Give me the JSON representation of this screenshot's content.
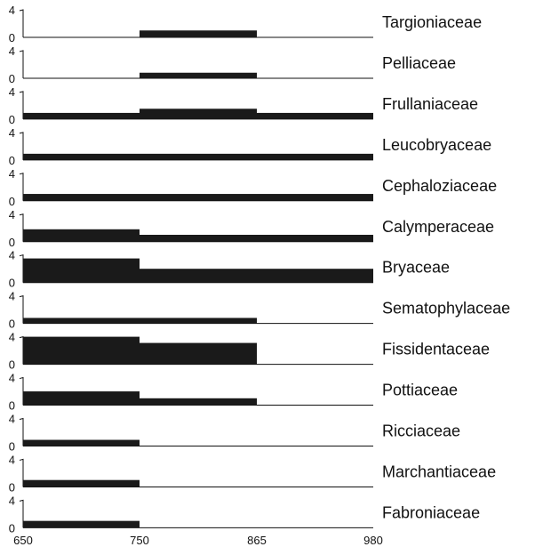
{
  "chart_data": {
    "type": "bar",
    "x_ticks": [
      650,
      750,
      865,
      980
    ],
    "ylim": [
      0,
      4
    ],
    "y_ticks": [
      "0",
      "4"
    ],
    "title": "",
    "xlabel": "",
    "ylabel": "",
    "grid": false,
    "bar_color": "#1a1a1a",
    "series": [
      {
        "name": "Targioniaceae",
        "segments": [
          {
            "x0": 650,
            "x1": 750,
            "value": 0
          },
          {
            "x0": 750,
            "x1": 865,
            "value": 1
          },
          {
            "x0": 865,
            "x1": 980,
            "value": 0
          }
        ]
      },
      {
        "name": "Pelliaceae",
        "segments": [
          {
            "x0": 650,
            "x1": 750,
            "value": 0
          },
          {
            "x0": 750,
            "x1": 865,
            "value": 0.8
          },
          {
            "x0": 865,
            "x1": 980,
            "value": 0
          }
        ]
      },
      {
        "name": "Frullaniaceae",
        "segments": [
          {
            "x0": 650,
            "x1": 750,
            "value": 0.9
          },
          {
            "x0": 750,
            "x1": 865,
            "value": 1.5
          },
          {
            "x0": 865,
            "x1": 980,
            "value": 0.9
          }
        ]
      },
      {
        "name": "Leucobryaceae",
        "segments": [
          {
            "x0": 650,
            "x1": 750,
            "value": 0.9
          },
          {
            "x0": 750,
            "x1": 865,
            "value": 0.9
          },
          {
            "x0": 865,
            "x1": 980,
            "value": 0.9
          }
        ]
      },
      {
        "name": "Cephaloziaceae",
        "segments": [
          {
            "x0": 650,
            "x1": 750,
            "value": 1
          },
          {
            "x0": 750,
            "x1": 865,
            "value": 1
          },
          {
            "x0": 865,
            "x1": 980,
            "value": 1
          }
        ]
      },
      {
        "name": "Calymperaceae",
        "segments": [
          {
            "x0": 650,
            "x1": 750,
            "value": 1.8
          },
          {
            "x0": 750,
            "x1": 865,
            "value": 1
          },
          {
            "x0": 865,
            "x1": 980,
            "value": 1
          }
        ]
      },
      {
        "name": "Bryaceae",
        "segments": [
          {
            "x0": 650,
            "x1": 750,
            "value": 3.5
          },
          {
            "x0": 750,
            "x1": 865,
            "value": 2
          },
          {
            "x0": 865,
            "x1": 980,
            "value": 2
          }
        ]
      },
      {
        "name": "Sematophylaceae",
        "segments": [
          {
            "x0": 650,
            "x1": 750,
            "value": 0.8
          },
          {
            "x0": 750,
            "x1": 865,
            "value": 0.8
          },
          {
            "x0": 865,
            "x1": 980,
            "value": 0
          }
        ]
      },
      {
        "name": "Fissidentaceae",
        "segments": [
          {
            "x0": 650,
            "x1": 750,
            "value": 4
          },
          {
            "x0": 750,
            "x1": 865,
            "value": 3.1
          },
          {
            "x0": 865,
            "x1": 980,
            "value": 0
          }
        ]
      },
      {
        "name": "Pottiaceae",
        "segments": [
          {
            "x0": 650,
            "x1": 750,
            "value": 2
          },
          {
            "x0": 750,
            "x1": 865,
            "value": 1
          },
          {
            "x0": 865,
            "x1": 980,
            "value": 0
          }
        ]
      },
      {
        "name": "Ricciaceae",
        "segments": [
          {
            "x0": 650,
            "x1": 750,
            "value": 0.9
          },
          {
            "x0": 750,
            "x1": 865,
            "value": 0
          },
          {
            "x0": 865,
            "x1": 980,
            "value": 0
          }
        ]
      },
      {
        "name": "Marchantiaceae",
        "segments": [
          {
            "x0": 650,
            "x1": 750,
            "value": 1
          },
          {
            "x0": 750,
            "x1": 865,
            "value": 0
          },
          {
            "x0": 865,
            "x1": 980,
            "value": 0
          }
        ]
      },
      {
        "name": "Fabroniaceae",
        "segments": [
          {
            "x0": 650,
            "x1": 750,
            "value": 1
          },
          {
            "x0": 750,
            "x1": 865,
            "value": 0
          },
          {
            "x0": 865,
            "x1": 980,
            "value": 0
          }
        ]
      }
    ]
  }
}
